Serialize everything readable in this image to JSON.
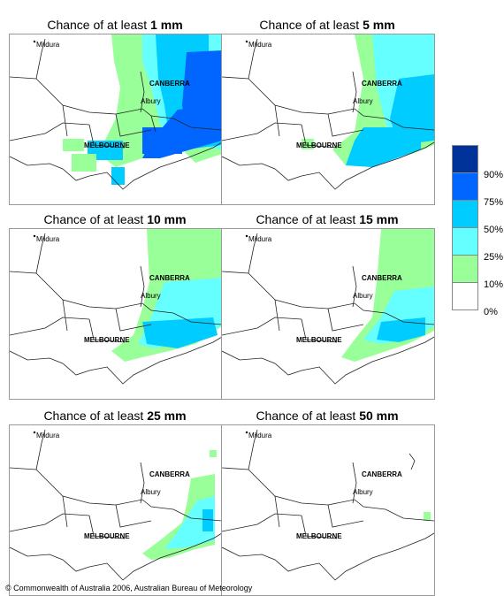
{
  "panels": [
    {
      "prefix": "Chance of at least ",
      "amount": "1 mm"
    },
    {
      "prefix": "Chance of at least ",
      "amount": "5 mm"
    },
    {
      "prefix": "Chance of at least ",
      "amount": "10 mm"
    },
    {
      "prefix": "Chance of at least ",
      "amount": "15 mm"
    },
    {
      "prefix": "Chance of at least ",
      "amount": "25 mm"
    },
    {
      "prefix": "Chance of at least ",
      "amount": "50 mm"
    }
  ],
  "places": {
    "mildura": "Mildura",
    "canberra": "CANBERRA",
    "albury": "Albury",
    "melbourne": "MELBOURNE"
  },
  "legend": {
    "ticks": [
      "90%",
      "75%",
      "50%",
      "25%",
      "10%",
      "0%"
    ],
    "colors": [
      "#003399",
      "#0066ff",
      "#00ccff",
      "#66ffff",
      "#99ff99",
      "#ffffff"
    ]
  },
  "copyright": "© Commonwealth of Australia 2006, Australian Bureau of Meteorology"
}
